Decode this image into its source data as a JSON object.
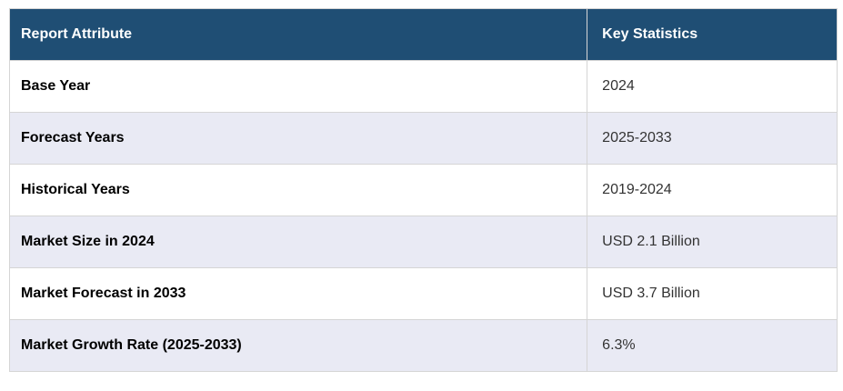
{
  "table": {
    "columns": [
      {
        "label": "Report Attribute"
      },
      {
        "label": "Key Statistics"
      }
    ],
    "rows": [
      {
        "attribute": "Base Year",
        "value": "2024"
      },
      {
        "attribute": "Forecast Years",
        "value": "2025-2033"
      },
      {
        "attribute": "Historical Years",
        "value": "2019-2024"
      },
      {
        "attribute": "Market Size in 2024",
        "value": "USD 2.1 Billion"
      },
      {
        "attribute": "Market Forecast in 2033",
        "value": "USD 3.7 Billion"
      },
      {
        "attribute": "Market Growth Rate (2025-2033)",
        "value": "6.3%"
      }
    ],
    "colors": {
      "header_bg": "#1F4E74",
      "header_text": "#FFFFFF",
      "row_bg": "#FFFFFF",
      "row_alt_bg": "#E9EAF4",
      "border": "#D5D5D5",
      "attribute_text": "#000000",
      "value_text": "#333333"
    }
  }
}
